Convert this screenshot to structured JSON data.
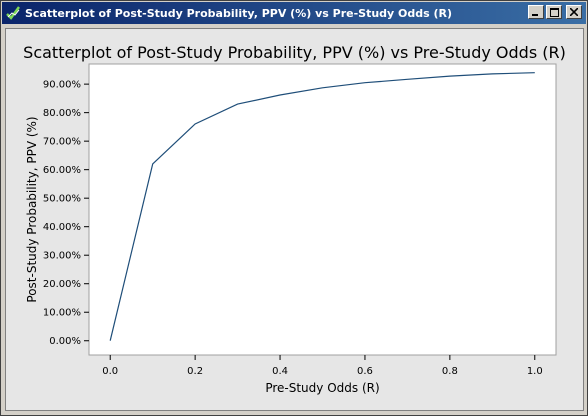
{
  "window": {
    "title": "Scatterplot of Post-Study Probability, PPV (%) vs Pre-Study Odds (R)",
    "minimize_icon": "minimize-icon",
    "maximize_icon": "maximize-icon",
    "close_icon": "close-icon",
    "app_icon": "graph-check-icon"
  },
  "colors": {
    "titlebar": "#0a246a",
    "plot_background": "#ffffff",
    "outer_background": "#e6e6e6",
    "line": "#1f4e79"
  },
  "chart_data": {
    "type": "line",
    "title": "Scatterplot of Post-Study Probability, PPV (%) vs Pre-Study Odds (R)",
    "xlabel": "Pre-Study Odds (R)",
    "ylabel": "Post-Study Probability, PPV (%)",
    "xlim": [
      -0.05,
      1.05
    ],
    "ylim": [
      -0.05,
      0.9706
    ],
    "x_ticks": [
      0.0,
      0.2,
      0.4,
      0.6,
      0.8,
      1.0
    ],
    "x_tick_labels": [
      "0.0",
      "0.2",
      "0.4",
      "0.6",
      "0.8",
      "1.0"
    ],
    "y_ticks": [
      0,
      0.1,
      0.2,
      0.3,
      0.4,
      0.5,
      0.6,
      0.7,
      0.8,
      0.9
    ],
    "y_tick_labels": [
      "0.00%",
      "10.00%",
      "20.00%",
      "30.00%",
      "40.00%",
      "50.00%",
      "60.00%",
      "70.00%",
      "80.00%",
      "90.00%"
    ],
    "grid": false,
    "series": [
      {
        "x": [
          0.0,
          0.1,
          0.2,
          0.3,
          0.4,
          0.5,
          0.6,
          0.7,
          0.8,
          0.9,
          1.0
        ],
        "y": [
          0.0,
          0.62,
          0.76,
          0.83,
          0.862,
          0.887,
          0.905,
          0.917,
          0.928,
          0.936,
          0.94
        ]
      }
    ]
  }
}
